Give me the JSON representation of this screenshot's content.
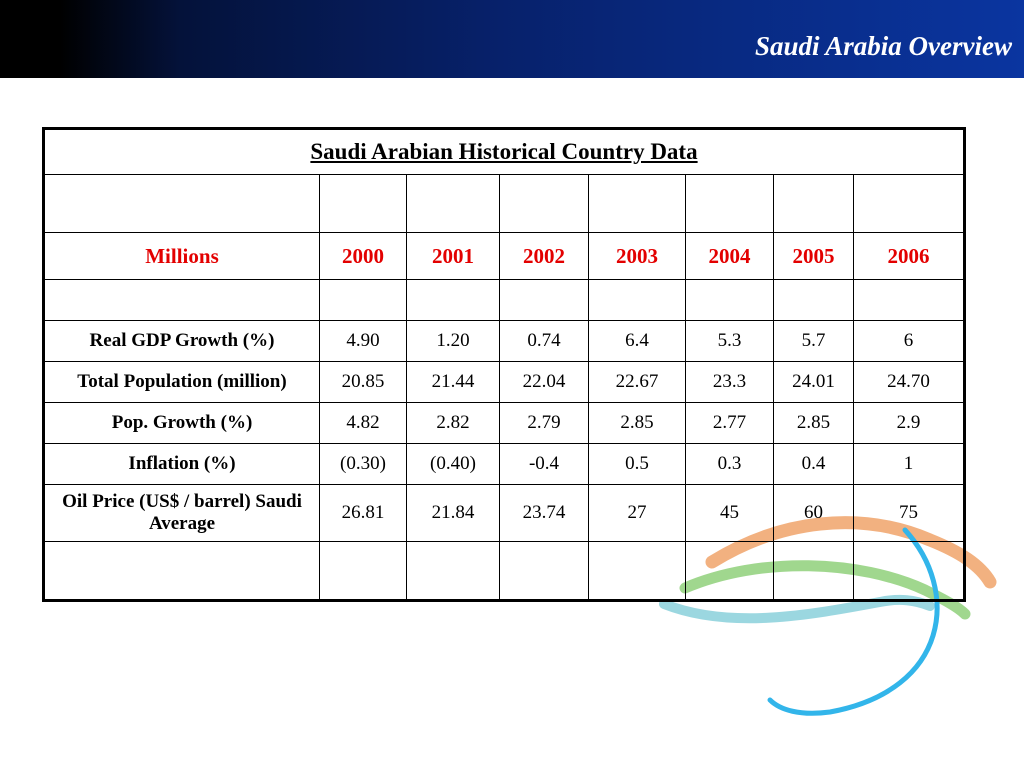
{
  "header": {
    "title": "Saudi Arabia Overview"
  },
  "table": {
    "title": "Saudi Arabian Historical Country Data",
    "header_label": "Millions",
    "years": [
      "2000",
      "2001",
      "2002",
      "2003",
      "2004",
      "2005",
      "2006"
    ],
    "rows": [
      {
        "label": "Real GDP Growth (%)",
        "values": [
          "4.90",
          "1.20",
          "0.74",
          "6.4",
          "5.3",
          "5.7",
          "6"
        ]
      },
      {
        "label": "Total Population (million)",
        "values": [
          "20.85",
          "21.44",
          "22.04",
          "22.67",
          "23.3",
          "24.01",
          "24.70"
        ]
      },
      {
        "label": "Pop. Growth (%)",
        "values": [
          "4.82",
          "2.82",
          "2.79",
          "2.85",
          "2.77",
          "2.85",
          "2.9"
        ]
      },
      {
        "label": "Inflation (%)",
        "values": [
          "(0.30)",
          "(0.40)",
          "-0.4",
          "0.5",
          "0.3",
          "0.4",
          "1"
        ]
      }
    ],
    "oil_row": {
      "label_line1": "Oil Price (US$ / barrel) Saudi",
      "label_line2": "Average",
      "values": [
        "26.81",
        "21.84",
        "23.74",
        "27",
        "45",
        "60",
        "75"
      ]
    }
  },
  "colors": {
    "header_start": "#000000",
    "header_end": "#0a35a0",
    "year_text": "#e30000",
    "wave_orange": "#f0a36a",
    "wave_green": "#8fd07a",
    "wave_teal": "#8ad0da",
    "wave_blue": "#32b5ea"
  }
}
